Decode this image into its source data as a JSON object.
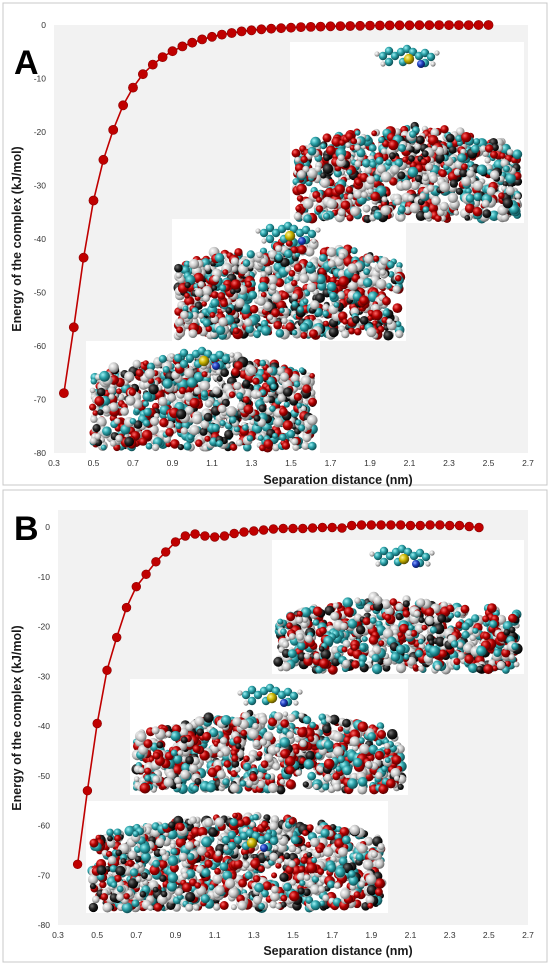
{
  "chart_data": [
    {
      "type": "scatter",
      "panel_label": "A",
      "xlabel": "Separation distance (nm)",
      "ylabel": "Energy of the complex (kJ/mol)",
      "xlim": [
        0.3,
        2.7
      ],
      "ylim": [
        -80,
        0
      ],
      "x_ticks": [
        "0.3",
        "0.5",
        "0.7",
        "0.9",
        "1.1",
        "1.3",
        "1.5",
        "1.7",
        "1.9",
        "2.1",
        "2.3",
        "2.5",
        "2.7"
      ],
      "y_ticks": [
        "0",
        "-10",
        "-20",
        "-30",
        "-40",
        "-50",
        "-60",
        "-70",
        "-80"
      ],
      "grid": false,
      "series_color": "#c00000",
      "series": [
        {
          "x": [
            0.35,
            0.4,
            0.45,
            0.5,
            0.55,
            0.6,
            0.65,
            0.7,
            0.75,
            0.8,
            0.85,
            0.9,
            0.95,
            1.0,
            1.05,
            1.1,
            1.15,
            1.2,
            1.25,
            1.3,
            1.35,
            1.4,
            1.45,
            1.5,
            1.55,
            1.6,
            1.65,
            1.7,
            1.75,
            1.8,
            1.85,
            1.9,
            1.95,
            2.0,
            2.05,
            2.1,
            2.15,
            2.2,
            2.25,
            2.3,
            2.35,
            2.4,
            2.45,
            2.5
          ],
          "y": [
            -68.8,
            -56.5,
            -43.5,
            -32.8,
            -25.2,
            -19.6,
            -15.0,
            -11.7,
            -9.2,
            -7.4,
            -6.0,
            -4.9,
            -4.0,
            -3.3,
            -2.7,
            -2.2,
            -1.8,
            -1.5,
            -1.2,
            -1.0,
            -0.8,
            -0.7,
            -0.6,
            -0.5,
            -0.4,
            -0.35,
            -0.3,
            -0.25,
            -0.2,
            -0.18,
            -0.15,
            -0.12,
            -0.1,
            -0.08,
            -0.06,
            -0.05,
            -0.04,
            -0.03,
            -0.02,
            -0.02,
            -0.01,
            -0.01,
            0,
            0
          ]
        }
      ]
    },
    {
      "type": "scatter",
      "panel_label": "B",
      "xlabel": "Separation distance (nm)",
      "ylabel": "Energy of the complex (kJ/mol)",
      "xlim": [
        0.3,
        2.7
      ],
      "ylim": [
        -80,
        0
      ],
      "x_ticks": [
        "0.3",
        "0.5",
        "0.7",
        "0.9",
        "1.1",
        "1.3",
        "1.5",
        "1.7",
        "1.9",
        "2.1",
        "2.3",
        "2.5",
        "2.7"
      ],
      "y_ticks": [
        "0",
        "-10",
        "-20",
        "-30",
        "-40",
        "-50",
        "-60",
        "-70",
        "-80"
      ],
      "grid": false,
      "series_color": "#c00000",
      "series": [
        {
          "x": [
            0.4,
            0.45,
            0.5,
            0.55,
            0.6,
            0.65,
            0.7,
            0.75,
            0.8,
            0.85,
            0.9,
            0.95,
            1.0,
            1.05,
            1.1,
            1.15,
            1.2,
            1.25,
            1.3,
            1.35,
            1.4,
            1.45,
            1.5,
            1.55,
            1.6,
            1.65,
            1.7,
            1.75,
            1.8,
            1.85,
            1.9,
            1.95,
            2.0,
            2.05,
            2.1,
            2.15,
            2.2,
            2.25,
            2.3,
            2.35,
            2.4,
            2.45
          ],
          "y": [
            -67.8,
            -53.0,
            -39.5,
            -28.8,
            -22.2,
            -16.2,
            -12.0,
            -9.5,
            -7.0,
            -5.0,
            -3.0,
            -1.8,
            -1.4,
            -1.8,
            -2.0,
            -1.8,
            -1.3,
            -1.0,
            -0.8,
            -0.6,
            -0.4,
            -0.3,
            -0.3,
            -0.3,
            -0.2,
            -0.1,
            -0.1,
            -0.2,
            0.3,
            0.4,
            0.4,
            0.4,
            0.4,
            0.4,
            0.3,
            0.3,
            0.4,
            0.4,
            0.3,
            0.3,
            0.1,
            -0.1
          ]
        }
      ]
    }
  ],
  "insets_description_colors": {
    "oxygen": "#b30000",
    "carbon": "#2a9fa6",
    "hydrogen": "#c9c9c9",
    "sulfur": "#c9b400",
    "nitrogen": "#1f3fbf"
  }
}
